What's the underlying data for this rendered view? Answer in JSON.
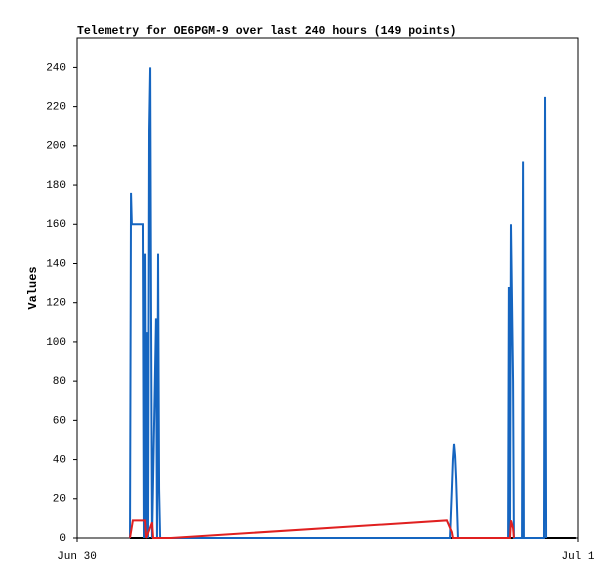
{
  "chart_data": {
    "type": "line",
    "title": "Telemetry for OE6PGM-9 over last 240 hours (149 points)",
    "y_label": "Values",
    "xlim": [
      0,
      24
    ],
    "xticks": [
      {
        "value": 0,
        "label": "Jun 30"
      },
      {
        "value": 24,
        "label": "Jul 1"
      }
    ],
    "ylim": [
      0,
      255
    ],
    "yticks": [
      0,
      20,
      40,
      60,
      80,
      100,
      120,
      140,
      160,
      180,
      200,
      220,
      240
    ],
    "grid": false,
    "series": [
      {
        "color": "#000000",
        "x": [
          2.54,
          23.9
        ],
        "values": [
          0,
          0
        ]
      },
      {
        "color": "#1565c0",
        "x": [
          2.54,
          2.59,
          2.63,
          3.16,
          3.21,
          3.26,
          3.31,
          3.35,
          3.4,
          3.45,
          3.5,
          3.54,
          3.59,
          3.78,
          3.83,
          3.88,
          3.93,
          3.98,
          17.87,
          17.96,
          18.01,
          18.06,
          18.11,
          18.16,
          18.25,
          20.65,
          20.69,
          20.74,
          20.79,
          20.89,
          20.93,
          21.32,
          21.37,
          21.41,
          22.37,
          22.42,
          22.47
        ],
        "values": [
          0,
          176,
          160,
          160,
          0,
          145,
          0,
          105,
          0,
          208,
          240,
          120,
          0,
          112,
          0,
          145,
          25,
          0,
          0,
          25,
          40,
          48,
          42,
          30,
          0,
          0,
          128,
          0,
          160,
          80,
          0,
          0,
          192,
          0,
          0,
          225,
          0
        ]
      },
      {
        "color": "#e02020",
        "x": [
          2.54,
          2.68,
          3.26,
          3.31,
          3.59,
          3.64,
          4.5,
          17.72,
          17.96,
          18.01,
          20.74,
          20.79,
          20.89,
          20.93
        ],
        "values": [
          0,
          9,
          9,
          0,
          8,
          0,
          0,
          9,
          3,
          0,
          0,
          9,
          5,
          0
        ]
      }
    ]
  }
}
